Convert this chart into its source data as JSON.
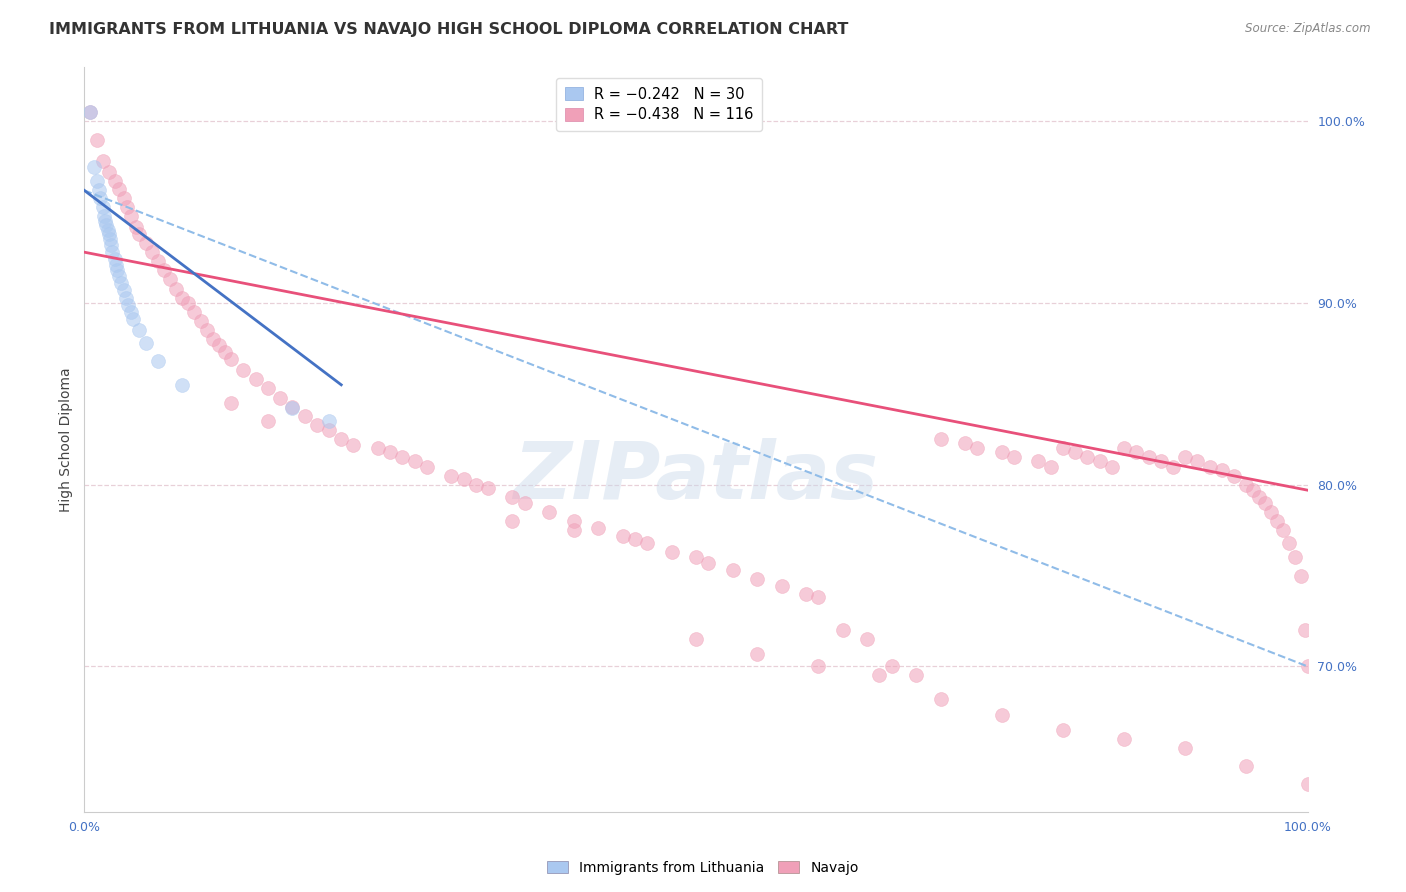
{
  "title": "IMMIGRANTS FROM LITHUANIA VS NAVAJO HIGH SCHOOL DIPLOMA CORRELATION CHART",
  "source": "Source: ZipAtlas.com",
  "ylabel": "High School Diploma",
  "y_tick_labels": [
    "100.0%",
    "90.0%",
    "80.0%",
    "70.0%"
  ],
  "y_tick_positions": [
    1.0,
    0.9,
    0.8,
    0.7
  ],
  "x_tick_labels": [
    "0.0%",
    "",
    "",
    "",
    "100.0%"
  ],
  "x_tick_positions": [
    0.0,
    0.25,
    0.5,
    0.75,
    1.0
  ],
  "xlim": [
    0.0,
    1.0
  ],
  "ylim": [
    0.62,
    1.03
  ],
  "watermark": "ZIPatlas",
  "blue_scatter_x": [
    0.005,
    0.008,
    0.01,
    0.012,
    0.013,
    0.015,
    0.016,
    0.017,
    0.018,
    0.019,
    0.02,
    0.021,
    0.022,
    0.023,
    0.025,
    0.026,
    0.027,
    0.028,
    0.03,
    0.032,
    0.034,
    0.036,
    0.038,
    0.04,
    0.045,
    0.05,
    0.06,
    0.08,
    0.17,
    0.2
  ],
  "blue_scatter_y": [
    1.005,
    0.975,
    0.967,
    0.962,
    0.958,
    0.953,
    0.948,
    0.945,
    0.943,
    0.94,
    0.938,
    0.935,
    0.932,
    0.928,
    0.924,
    0.921,
    0.918,
    0.915,
    0.911,
    0.907,
    0.903,
    0.899,
    0.895,
    0.891,
    0.885,
    0.878,
    0.868,
    0.855,
    0.842,
    0.835
  ],
  "pink_scatter_x": [
    0.005,
    0.01,
    0.015,
    0.02,
    0.025,
    0.028,
    0.032,
    0.035,
    0.038,
    0.042,
    0.045,
    0.05,
    0.055,
    0.06,
    0.065,
    0.07,
    0.075,
    0.08,
    0.085,
    0.09,
    0.095,
    0.1,
    0.105,
    0.11,
    0.115,
    0.12,
    0.13,
    0.14,
    0.15,
    0.16,
    0.17,
    0.18,
    0.19,
    0.2,
    0.21,
    0.22,
    0.24,
    0.25,
    0.26,
    0.27,
    0.28,
    0.3,
    0.31,
    0.32,
    0.33,
    0.35,
    0.36,
    0.38,
    0.4,
    0.42,
    0.44,
    0.46,
    0.48,
    0.5,
    0.51,
    0.53,
    0.55,
    0.57,
    0.59,
    0.6,
    0.62,
    0.64,
    0.66,
    0.68,
    0.7,
    0.72,
    0.73,
    0.75,
    0.76,
    0.78,
    0.79,
    0.8,
    0.81,
    0.82,
    0.83,
    0.84,
    0.85,
    0.86,
    0.87,
    0.88,
    0.89,
    0.9,
    0.91,
    0.92,
    0.93,
    0.94,
    0.95,
    0.955,
    0.96,
    0.965,
    0.97,
    0.975,
    0.98,
    0.985,
    0.99,
    0.995,
    0.998,
    1.0,
    0.35,
    0.4,
    0.45,
    0.5,
    0.55,
    0.6,
    0.65,
    0.7,
    0.75,
    0.8,
    0.85,
    0.9,
    0.95,
    1.0,
    0.12,
    0.15
  ],
  "pink_scatter_y": [
    1.005,
    0.99,
    0.978,
    0.972,
    0.967,
    0.963,
    0.958,
    0.953,
    0.948,
    0.942,
    0.938,
    0.933,
    0.928,
    0.923,
    0.918,
    0.913,
    0.908,
    0.903,
    0.9,
    0.895,
    0.89,
    0.885,
    0.88,
    0.877,
    0.873,
    0.869,
    0.863,
    0.858,
    0.853,
    0.848,
    0.843,
    0.838,
    0.833,
    0.83,
    0.825,
    0.822,
    0.82,
    0.818,
    0.815,
    0.813,
    0.81,
    0.805,
    0.803,
    0.8,
    0.798,
    0.793,
    0.79,
    0.785,
    0.78,
    0.776,
    0.772,
    0.768,
    0.763,
    0.76,
    0.757,
    0.753,
    0.748,
    0.744,
    0.74,
    0.738,
    0.72,
    0.715,
    0.7,
    0.695,
    0.825,
    0.823,
    0.82,
    0.818,
    0.815,
    0.813,
    0.81,
    0.82,
    0.818,
    0.815,
    0.813,
    0.81,
    0.82,
    0.818,
    0.815,
    0.813,
    0.81,
    0.815,
    0.813,
    0.81,
    0.808,
    0.805,
    0.8,
    0.797,
    0.793,
    0.79,
    0.785,
    0.78,
    0.775,
    0.768,
    0.76,
    0.75,
    0.72,
    0.7,
    0.78,
    0.775,
    0.77,
    0.715,
    0.707,
    0.7,
    0.695,
    0.682,
    0.673,
    0.665,
    0.66,
    0.655,
    0.645,
    0.635,
    0.845,
    0.835
  ],
  "blue_line_x0": 0.0,
  "blue_line_x1": 0.21,
  "blue_line_y0": 0.962,
  "blue_line_y1": 0.855,
  "pink_line_x0": 0.0,
  "pink_line_x1": 1.0,
  "pink_line_y0": 0.928,
  "pink_line_y1": 0.797,
  "dash_line_x0": 0.0,
  "dash_line_x1": 1.0,
  "dash_line_y0": 0.962,
  "dash_line_y1": 0.7,
  "scatter_blue_color": "#aac8f0",
  "scatter_pink_color": "#f0a0b8",
  "line_blue_color": "#4472c4",
  "line_pink_color": "#e8507a",
  "dash_line_color": "#90bce8",
  "background_color": "#ffffff",
  "grid_color": "#e8d0d8",
  "title_color": "#333333",
  "axis_label_color": "#4472c4",
  "source_color": "#888888",
  "watermark_color": "#c8d8ea",
  "title_fontsize": 11.5,
  "axis_label_fontsize": 10,
  "tick_fontsize": 9,
  "scatter_size": 100,
  "scatter_alpha": 0.55,
  "scatter_lw": 0.5
}
